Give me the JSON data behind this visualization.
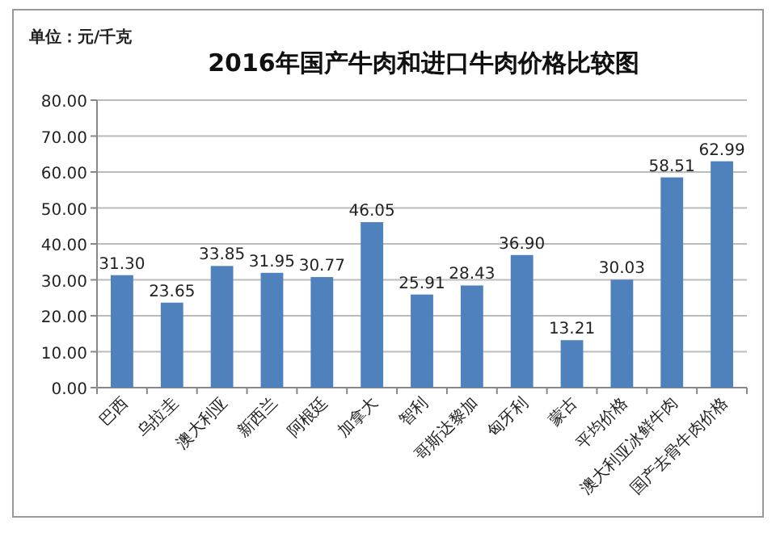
{
  "chart_data": {
    "type": "bar",
    "title": "2016年国产牛肉和进口牛肉价格比较图",
    "ylabel": "单位：元/千克",
    "categories": [
      "巴西",
      "乌拉圭",
      "澳大利亚",
      "新西兰",
      "阿根廷",
      "加拿大",
      "智利",
      "哥斯达黎加",
      "匈牙利",
      "蒙古",
      "平均价格",
      "澳大利亚冰鲜牛肉",
      "国产去骨牛肉价格"
    ],
    "values": [
      31.3,
      23.65,
      33.85,
      31.95,
      30.77,
      46.05,
      25.91,
      28.43,
      36.9,
      13.21,
      30.03,
      58.51,
      62.99
    ],
    "value_labels": [
      "31.30",
      "23.65",
      "33.85",
      "31.95",
      "30.77",
      "46.05",
      "25.91",
      "28.43",
      "36.90",
      "13.21",
      "30.03",
      "58.51",
      "62.99"
    ],
    "color": "#4f81bd",
    "ylim": [
      0,
      80
    ],
    "yticks": [
      {
        "value": 0,
        "label": "0.00"
      },
      {
        "value": 10,
        "label": "10.00"
      },
      {
        "value": 20,
        "label": "20.00"
      },
      {
        "value": 30,
        "label": "30.00"
      },
      {
        "value": 40,
        "label": "40.00"
      },
      {
        "value": 50,
        "label": "50.00"
      },
      {
        "value": 60,
        "label": "60.00"
      },
      {
        "value": 70,
        "label": "70.00"
      },
      {
        "value": 80,
        "label": "80.00"
      }
    ],
    "grid": "y"
  }
}
